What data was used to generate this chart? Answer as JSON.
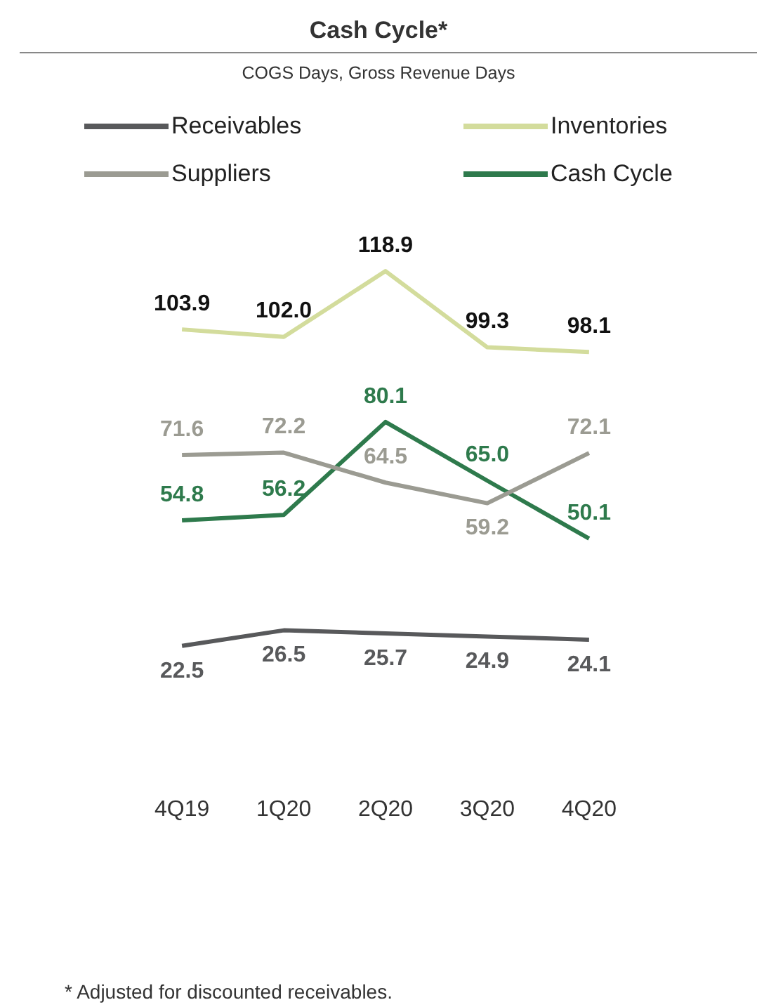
{
  "chart_data": {
    "type": "line",
    "title": "Cash Cycle*",
    "subtitle": "COGS Days, Gross Revenue Days",
    "categories": [
      "4Q19",
      "1Q20",
      "2Q20",
      "3Q20",
      "4Q20"
    ],
    "series": [
      {
        "name": "Receivables",
        "color": "#58595b",
        "values": [
          22.5,
          26.5,
          25.7,
          24.9,
          24.1
        ],
        "value_labels": [
          "22.5",
          "26.5",
          "25.7",
          "24.9",
          "24.1"
        ]
      },
      {
        "name": "Inventories",
        "color": "#d3dc9c",
        "values": [
          103.9,
          102.0,
          118.9,
          99.3,
          98.1
        ],
        "value_labels": [
          "103.9",
          "102.0",
          "118.9",
          "99.3",
          "98.1"
        ]
      },
      {
        "name": "Suppliers",
        "color": "#9b9b92",
        "values": [
          71.6,
          72.2,
          64.5,
          59.2,
          72.1
        ],
        "value_labels": [
          "71.6",
          "72.2",
          "64.5",
          "59.2",
          "72.1"
        ]
      },
      {
        "name": "Cash Cycle",
        "color": "#2e7a4c",
        "values": [
          54.8,
          56.2,
          80.1,
          65.0,
          50.1
        ],
        "value_labels": [
          "54.8",
          "56.2",
          "80.1",
          "65.0",
          "50.1"
        ]
      }
    ],
    "legend": "top",
    "grid": false,
    "marker": "none",
    "line_style": "solid",
    "annotations": [
      "* Adjusted for discounted receivables."
    ]
  }
}
